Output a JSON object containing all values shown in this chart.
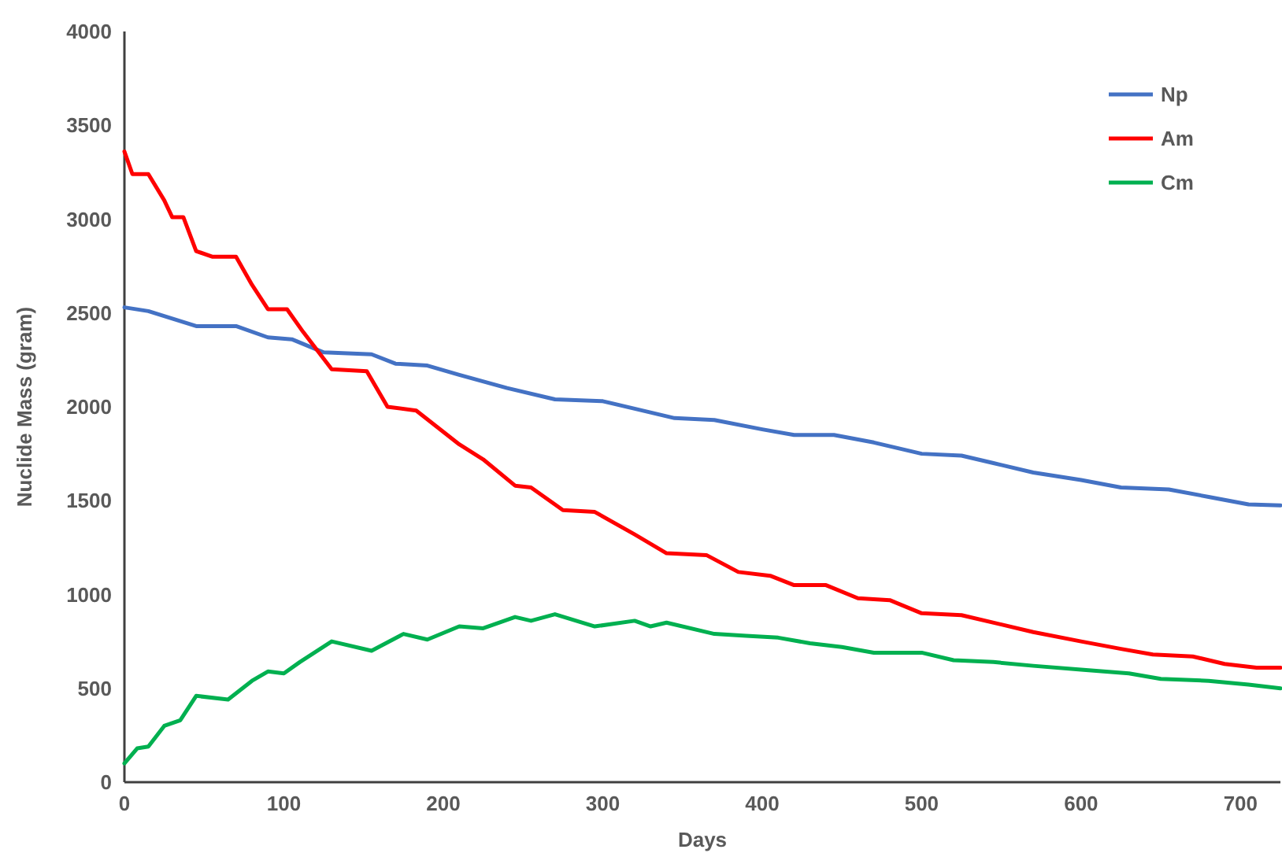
{
  "chart_data": {
    "type": "line",
    "xlabel": "Days",
    "ylabel": "Nuclide Mass (gram)",
    "xlim": [
      0,
      725
    ],
    "xticks": [
      0,
      100,
      200,
      300,
      400,
      500,
      600,
      700
    ],
    "ylim": [
      0,
      4000
    ],
    "yticks": [
      0,
      500,
      1000,
      1500,
      2000,
      2500,
      3000,
      3500,
      4000
    ],
    "grid": false,
    "legend": "top right",
    "line_style": "solid",
    "marker": "none",
    "x": [
      0,
      5,
      15,
      25,
      30,
      37,
      45,
      55,
      70,
      80,
      90,
      102,
      112,
      130,
      152,
      165,
      183,
      210,
      225,
      245,
      255,
      275,
      295,
      320,
      340,
      365,
      385,
      405,
      420,
      440,
      460,
      480,
      500,
      525,
      550,
      570,
      600,
      625,
      645,
      670,
      690,
      710,
      725
    ],
    "series": [
      {
        "name": "Np",
        "color": "#4472c4",
        "x": [
          0,
          15,
          30,
          45,
          70,
          90,
          105,
          125,
          155,
          170,
          190,
          210,
          240,
          270,
          300,
          320,
          345,
          370,
          400,
          420,
          445,
          470,
          500,
          525,
          545,
          570,
          600,
          625,
          655,
          680,
          705,
          725
        ],
        "values": [
          2530,
          2510,
          2470,
          2430,
          2430,
          2370,
          2360,
          2290,
          2280,
          2230,
          2220,
          2170,
          2100,
          2040,
          2030,
          1990,
          1940,
          1930,
          1880,
          1850,
          1850,
          1810,
          1750,
          1740,
          1700,
          1650,
          1610,
          1570,
          1560,
          1520,
          1480,
          1475
        ]
      },
      {
        "name": "Am",
        "color": "#ff0000",
        "values": [
          3360,
          3240,
          3240,
          3100,
          3010,
          3010,
          2830,
          2800,
          2800,
          2650,
          2520,
          2520,
          2400,
          2200,
          2190,
          2000,
          1980,
          1800,
          1720,
          1580,
          1570,
          1450,
          1440,
          1320,
          1220,
          1210,
          1120,
          1100,
          1050,
          1050,
          980,
          970,
          900,
          890,
          840,
          800,
          750,
          710,
          680,
          670,
          630,
          610,
          610
        ]
      },
      {
        "name": "Cm",
        "color": "#00b050",
        "x": [
          0,
          8,
          15,
          25,
          35,
          45,
          65,
          80,
          90,
          100,
          110,
          130,
          155,
          175,
          190,
          210,
          225,
          245,
          255,
          270,
          295,
          320,
          330,
          340,
          370,
          390,
          410,
          430,
          450,
          470,
          500,
          520,
          545,
          570,
          600,
          630,
          650,
          680,
          705,
          725
        ],
        "values": [
          100,
          180,
          190,
          300,
          330,
          460,
          440,
          540,
          590,
          580,
          640,
          750,
          700,
          790,
          760,
          830,
          820,
          880,
          860,
          895,
          830,
          860,
          830,
          850,
          790,
          780,
          770,
          740,
          720,
          690,
          690,
          650,
          640,
          620,
          600,
          580,
          550,
          540,
          520,
          500
        ]
      }
    ]
  }
}
